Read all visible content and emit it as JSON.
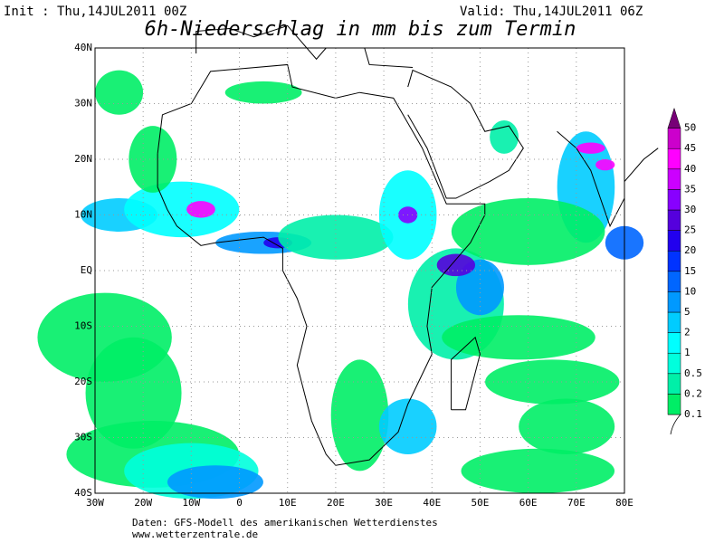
{
  "header": {
    "init": "Init : Thu,14JUL2011 00Z",
    "valid": "Valid: Thu,14JUL2011 06Z",
    "title": "6h-Niederschlag in mm bis zum Termin"
  },
  "map": {
    "xlim": [
      -30,
      80
    ],
    "ylim": [
      -40,
      40
    ],
    "xticks": [
      {
        "value": -30,
        "label": "30W"
      },
      {
        "value": -20,
        "label": "20W"
      },
      {
        "value": -10,
        "label": "10W"
      },
      0,
      {
        "value": 10,
        "label": "10E"
      },
      {
        "value": 20,
        "label": "20E"
      },
      {
        "value": 30,
        "label": "30E"
      },
      {
        "value": 40,
        "label": "40E"
      },
      {
        "value": 50,
        "label": "50E"
      },
      {
        "value": 60,
        "label": "60E"
      },
      {
        "value": 70,
        "label": "70E"
      },
      {
        "value": 80,
        "label": "80E"
      }
    ],
    "yticks": [
      {
        "value": 40,
        "label": "40N"
      },
      {
        "value": 30,
        "label": "30N"
      },
      {
        "value": 20,
        "label": "20N"
      },
      {
        "value": 10,
        "label": "10N"
      },
      {
        "value": 0,
        "label": "EQ"
      },
      {
        "value": -10,
        "label": "10S"
      },
      {
        "value": -20,
        "label": "20S"
      },
      {
        "value": -30,
        "label": "30S"
      },
      {
        "value": -40,
        "label": "40S"
      }
    ],
    "grid": true
  },
  "colorbar": {
    "levels": [
      0.1,
      0.2,
      0.5,
      1,
      2,
      5,
      10,
      15,
      20,
      25,
      30,
      35,
      40,
      45,
      50
    ],
    "colors": [
      "#00ee66",
      "#00f0a8",
      "#00ffdd",
      "#00ffff",
      "#00ccff",
      "#0099ff",
      "#0066ff",
      "#0033ff",
      "#2200ee",
      "#5500dd",
      "#8800ff",
      "#cc00ff",
      "#ff00ff",
      "#cc00cc",
      "#770077"
    ]
  },
  "footer": {
    "source": "Daten: GFS-Modell des amerikanischen Wetterdienstes",
    "url": "www.wetterzentrale.de"
  }
}
